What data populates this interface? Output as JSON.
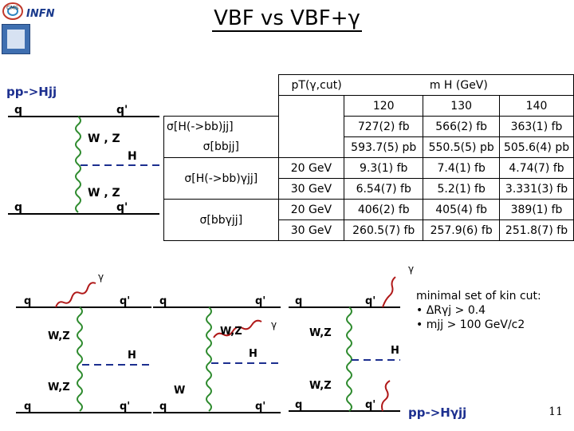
{
  "title": "VBF vs VBF+γ",
  "logos": {
    "cms": "CMS",
    "infn": "INFN"
  },
  "process_top": "pp->Hjj",
  "process_bottom": "pp->Hγjj",
  "diagram_top": {
    "q_left": "q",
    "q_right": "q'",
    "q_left_bottom": "q",
    "q_right_bottom": "q'",
    "boson1": "W , Z",
    "boson2": "W , Z",
    "higgs": "H"
  },
  "diagrams_bottom": {
    "d1": {
      "gamma": "γ",
      "q1": "q",
      "q1p": "q'",
      "boson1": "W,Z",
      "higgs": "H",
      "boson2": "W,Z",
      "q2": "q",
      "q2p": "q'"
    },
    "d2": {
      "gamma": "γ",
      "q1": "q",
      "q1p": "q'",
      "boson1": "W,Z",
      "higgs": "H",
      "boson2": "W",
      "q2": "q",
      "q2p": "q'"
    },
    "d3": {
      "gamma": "γ",
      "q1": "q",
      "q1p": "q'",
      "boson1": "W,Z",
      "higgs": "H",
      "boson2": "W,Z",
      "q2": "q",
      "q2p": "q'"
    }
  },
  "table": {
    "header_pt": "pT(γ,cut)",
    "header_mh": "m H (GeV)",
    "masses": [
      "120",
      "130",
      "140"
    ],
    "rows": [
      {
        "label": "σ[H(->bb)jj]",
        "cut": "",
        "values": [
          "727(2) fb",
          "566(2) fb",
          "363(1) fb"
        ]
      },
      {
        "label": "σ[bbjj]",
        "cut": "",
        "values": [
          "593.7(5) pb",
          "550.5(5) pb",
          "505.6(4) pb"
        ]
      },
      {
        "label": "σ[H(->bb)γjj]",
        "cut": "20 GeV",
        "values": [
          "9.3(1) fb",
          "7.4(1) fb",
          "4.74(7) fb"
        ]
      },
      {
        "label": "",
        "cut": "30 GeV",
        "values": [
          "6.54(7) fb",
          "5.2(1) fb",
          "3.331(3) fb"
        ]
      },
      {
        "label": "σ[bbγjj]",
        "cut": "20 GeV",
        "values": [
          "406(2) fb",
          "405(4) fb",
          "389(1) fb"
        ]
      },
      {
        "label": "",
        "cut": "30 GeV",
        "values": [
          "260.5(7) fb",
          "257.9(6) fb",
          "251.8(7) fb"
        ]
      }
    ]
  },
  "notes": {
    "heading": "minimal set of kin cut:",
    "cut1": "• ΔRγj > 0.4",
    "cut2": "• mjj > 100 GeV/c2"
  },
  "page_number": "11"
}
